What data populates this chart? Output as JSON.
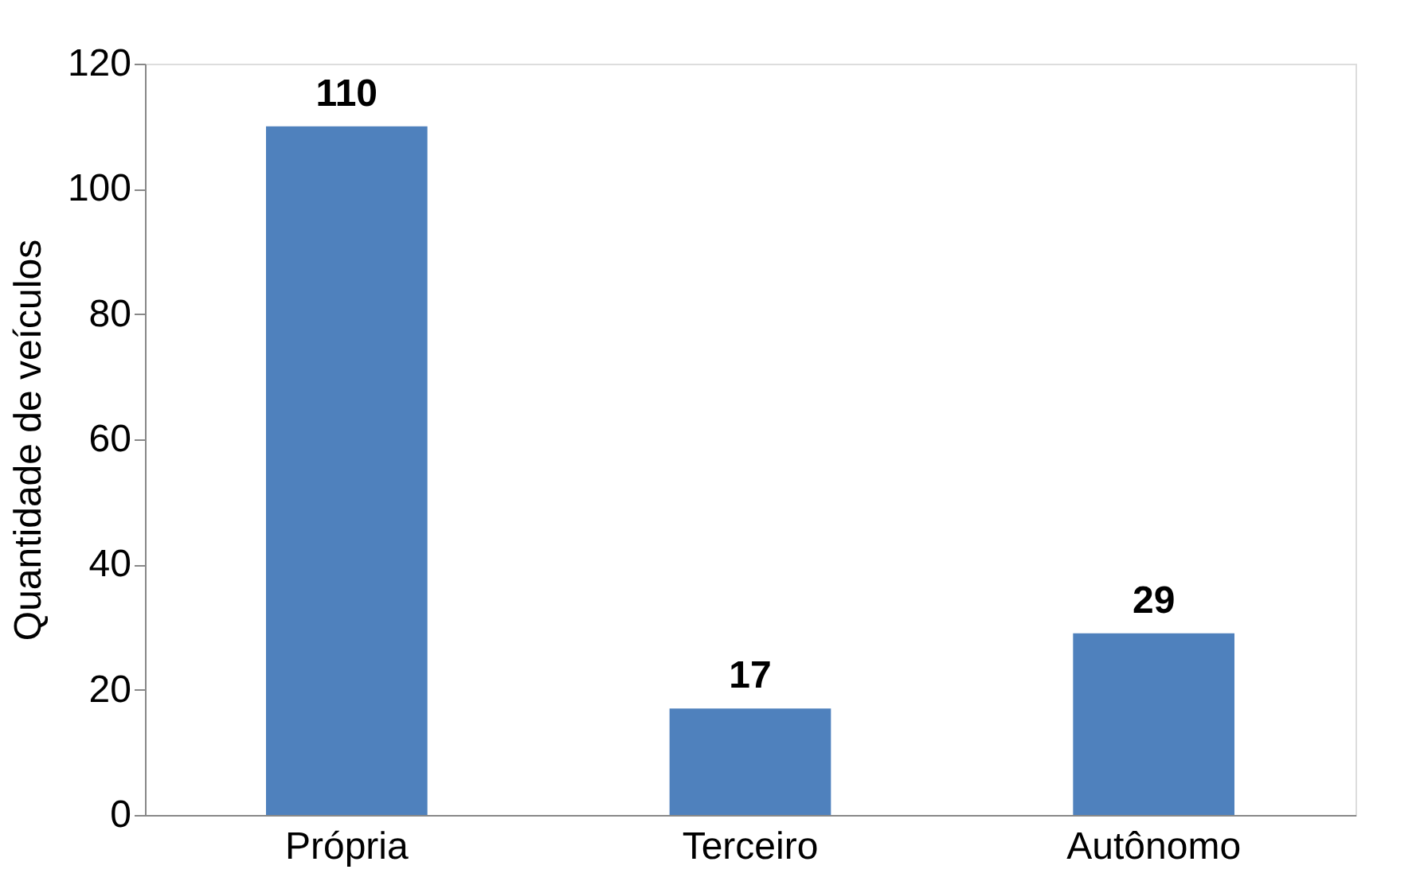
{
  "chart_data": {
    "type": "bar",
    "ylabel": "Quantidade de veículos",
    "categories": [
      "Própria",
      "Terceiro",
      "Autônomo"
    ],
    "values": [
      110,
      17,
      29
    ],
    "color": "#4f81bd",
    "ylim": [
      0,
      120
    ],
    "yticks": [
      0,
      20,
      40,
      60,
      80,
      100,
      120
    ],
    "grid": false,
    "data_labels": true
  }
}
